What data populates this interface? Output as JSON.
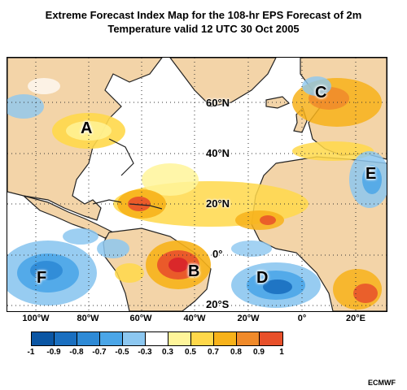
{
  "title_line1": "Extreme Forecast Index Map for the 108-hr EPS Forecast of 2m",
  "title_line2": "Temperature valid 12 UTC 30 Oct 2005",
  "lat_labels": [
    "60°N",
    "40°N",
    "20°N",
    "0°",
    "20°S"
  ],
  "lon_labels": [
    "100°W",
    "80°W",
    "60°W",
    "40°W",
    "20°W",
    "0°",
    "20°E"
  ],
  "region_letters": [
    "A",
    "B",
    "C",
    "D",
    "E",
    "F"
  ],
  "legend": {
    "colors": [
      "#0b56a4",
      "#1a6fc0",
      "#2e8ad6",
      "#4ba6e8",
      "#8cc7f0",
      "#ffffff",
      "#fff59a",
      "#ffd84a",
      "#f7b21a",
      "#f08a2a",
      "#e8502a",
      "#d8222a"
    ],
    "ticks": [
      "-1",
      "-0.9",
      "-0.8",
      "-0.7",
      "-0.5",
      "-0.3",
      "0.3",
      "0.5",
      "0.7",
      "0.8",
      "0.9",
      "1"
    ]
  },
  "colors": {
    "land": "#f3d4a8",
    "ocean": "#ffffff"
  },
  "credit": "ECMWF"
}
